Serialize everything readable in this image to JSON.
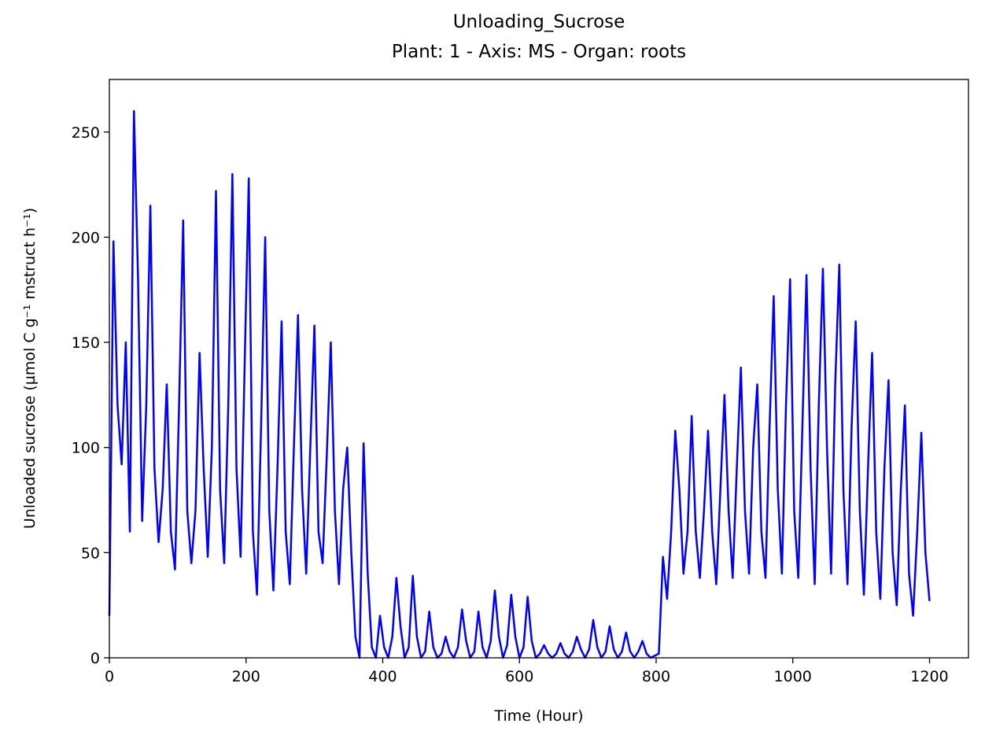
{
  "chart_data": {
    "type": "line",
    "title": "Unloading_Sucrose",
    "subtitle": "Plant: 1 - Axis: MS - Organ: roots",
    "x_label": "Time (Hour)",
    "y_label": "Unloaded sucrose (µmol C g⁻¹ mstruct h⁻¹)",
    "xlim": [
      0,
      1257
    ],
    "ylim": [
      0,
      275
    ],
    "xticks": [
      0,
      200,
      400,
      600,
      800,
      1000,
      1200
    ],
    "yticks": [
      0,
      50,
      100,
      150,
      200,
      250
    ],
    "series": [
      {
        "color": "#0000ff",
        "x": [
          0,
          6,
          12,
          18,
          24,
          30,
          36,
          42,
          48,
          54,
          60,
          66,
          72,
          78,
          84,
          90,
          96,
          102,
          108,
          114,
          120,
          126,
          132,
          138,
          144,
          150,
          156,
          162,
          168,
          174,
          180,
          186,
          192,
          198,
          204,
          210,
          216,
          222,
          228,
          234,
          240,
          246,
          252,
          258,
          264,
          270,
          276,
          282,
          288,
          294,
          300,
          306,
          312,
          318,
          324,
          330,
          336,
          342,
          348,
          354,
          360,
          366,
          372,
          378,
          384,
          390,
          396,
          402,
          408,
          414,
          420,
          426,
          432,
          438,
          444,
          450,
          456,
          462,
          468,
          474,
          480,
          486,
          492,
          498,
          504,
          510,
          516,
          522,
          528,
          534,
          540,
          546,
          552,
          558,
          564,
          570,
          576,
          582,
          588,
          594,
          600,
          606,
          612,
          618,
          624,
          630,
          636,
          642,
          648,
          654,
          660,
          666,
          672,
          678,
          684,
          690,
          696,
          702,
          708,
          714,
          720,
          726,
          732,
          738,
          744,
          750,
          756,
          762,
          768,
          774,
          780,
          786,
          792,
          798,
          804,
          810,
          816,
          822,
          828,
          834,
          840,
          846,
          852,
          858,
          864,
          870,
          876,
          882,
          888,
          894,
          900,
          906,
          912,
          918,
          924,
          930,
          936,
          942,
          948,
          954,
          960,
          966,
          972,
          978,
          984,
          990,
          996,
          1002,
          1008,
          1014,
          1020,
          1026,
          1032,
          1038,
          1044,
          1050,
          1056,
          1062,
          1068,
          1074,
          1080,
          1086,
          1092,
          1098,
          1104,
          1110,
          1116,
          1122,
          1128,
          1134,
          1140,
          1146,
          1152,
          1158,
          1164,
          1170,
          1176,
          1182,
          1188,
          1194,
          1200
        ],
        "values": [
          20,
          198,
          120,
          92,
          150,
          60,
          260,
          180,
          65,
          120,
          215,
          90,
          55,
          80,
          130,
          60,
          42,
          120,
          208,
          70,
          45,
          70,
          145,
          90,
          48,
          100,
          222,
          80,
          45,
          120,
          230,
          90,
          48,
          140,
          228,
          60,
          30,
          110,
          200,
          70,
          32,
          90,
          160,
          60,
          35,
          100,
          163,
          80,
          40,
          100,
          158,
          60,
          45,
          95,
          150,
          70,
          35,
          80,
          100,
          50,
          10,
          0,
          102,
          40,
          5,
          0,
          20,
          5,
          0,
          10,
          38,
          15,
          0,
          5,
          39,
          10,
          0,
          3,
          22,
          5,
          0,
          2,
          10,
          3,
          0,
          5,
          23,
          8,
          0,
          3,
          22,
          5,
          0,
          8,
          32,
          10,
          0,
          6,
          30,
          10,
          0,
          5,
          29,
          8,
          0,
          2,
          6,
          2,
          0,
          2,
          7,
          2,
          0,
          3,
          10,
          4,
          0,
          4,
          18,
          5,
          0,
          3,
          15,
          4,
          0,
          3,
          12,
          3,
          0,
          3,
          8,
          2,
          0,
          1,
          2,
          48,
          28,
          60,
          108,
          80,
          40,
          60,
          115,
          60,
          38,
          70,
          108,
          60,
          35,
          80,
          125,
          70,
          38,
          90,
          138,
          70,
          40,
          100,
          130,
          60,
          38,
          110,
          172,
          80,
          40,
          120,
          180,
          70,
          38,
          110,
          182,
          90,
          35,
          120,
          185,
          100,
          40,
          130,
          187,
          80,
          35,
          110,
          160,
          70,
          30,
          90,
          145,
          60,
          28,
          90,
          132,
          50,
          25,
          80,
          120,
          40,
          20,
          60,
          107,
          50,
          27
        ]
      }
    ]
  }
}
